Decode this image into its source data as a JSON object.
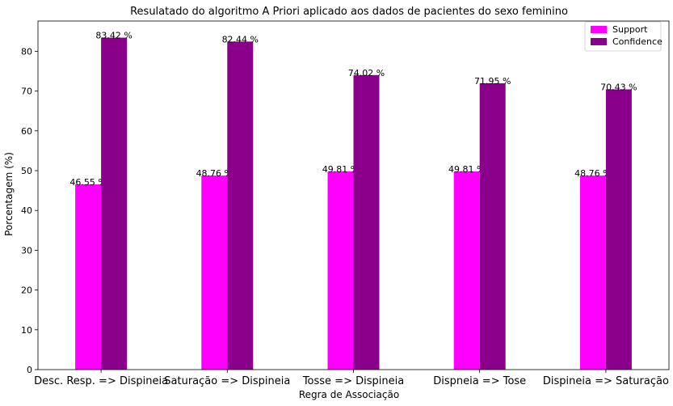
{
  "chart_data": {
    "type": "bar",
    "title": "Resulatado do algoritmo A Priori aplicado aos dados de pacientes do sexo feminino",
    "xlabel": "Regra de Associação",
    "ylabel": "Porcentagem (%)",
    "categories": [
      "Desc. Resp. => Dispineia",
      "Saturação => Dispineia",
      "Tosse => Dispineia",
      "Dispneia => Tose",
      "Dispineia => Saturação"
    ],
    "series": [
      {
        "name": "Support",
        "color": "#ff00ff",
        "values": [
          46.55,
          48.76,
          49.81,
          49.81,
          48.76
        ]
      },
      {
        "name": "Confidence",
        "color": "#8b008b",
        "values": [
          83.42,
          82.44,
          74.02,
          71.95,
          70.43
        ]
      }
    ],
    "data_labels": [
      [
        "46.55 %",
        "48.76 %",
        "49.81 %",
        "49.81 %",
        "48.76 %"
      ],
      [
        "83.42 %",
        "82.44 %",
        "74.02 %",
        "71.95 %",
        "70.43 %"
      ]
    ],
    "yticks": [
      0,
      10,
      20,
      30,
      40,
      50,
      60,
      70,
      80
    ],
    "ylim": [
      0,
      87.6
    ],
    "grid": false,
    "legend_position": "top-right"
  }
}
